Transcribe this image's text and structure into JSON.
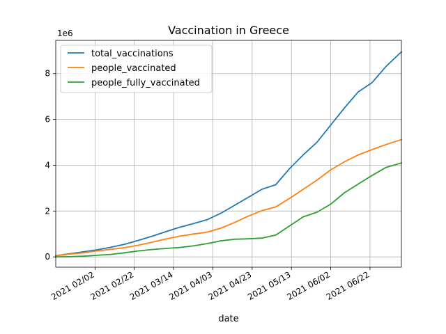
{
  "chart_data": {
    "type": "line",
    "title": "Vaccination in Greece",
    "xlabel": "date",
    "ylabel": "",
    "y_scale_label": "1e6",
    "grid": true,
    "legend_position": "top-left",
    "x_ticks": [
      "2021 02/02",
      "2021 02/22",
      "2021 03/14",
      "2021 04/03",
      "2021 04/23",
      "2021 05/13",
      "2021 06/02",
      "2021 06/22"
    ],
    "y_ticks": [
      "0",
      "2",
      "4",
      "6",
      "8"
    ],
    "xlim": [
      "2021-01-13",
      "2021-07-08"
    ],
    "ylim": [
      -0.45,
      9.45
    ],
    "series": [
      {
        "name": "total_vaccinations",
        "color": "#1f77b4",
        "x": [
          "2021-01-13",
          "2021-01-20",
          "2021-01-27",
          "2021-02-03",
          "2021-02-10",
          "2021-02-17",
          "2021-02-24",
          "2021-03-03",
          "2021-03-10",
          "2021-03-17",
          "2021-03-24",
          "2021-03-31",
          "2021-04-07",
          "2021-04-14",
          "2021-04-21",
          "2021-04-28",
          "2021-05-05",
          "2021-05-12",
          "2021-05-19",
          "2021-05-26",
          "2021-06-02",
          "2021-06-09",
          "2021-06-16",
          "2021-06-23",
          "2021-06-30",
          "2021-07-08"
        ],
        "values": [
          0.05,
          0.14,
          0.22,
          0.31,
          0.42,
          0.55,
          0.72,
          0.9,
          1.1,
          1.29,
          1.45,
          1.62,
          1.9,
          2.25,
          2.6,
          2.95,
          3.15,
          3.85,
          4.45,
          5.0,
          5.75,
          6.5,
          7.2,
          7.6,
          8.3,
          8.95
        ]
      },
      {
        "name": "people_vaccinated",
        "color": "#ff7f0e",
        "x": [
          "2021-01-13",
          "2021-01-20",
          "2021-01-27",
          "2021-02-03",
          "2021-02-10",
          "2021-02-17",
          "2021-02-24",
          "2021-03-03",
          "2021-03-10",
          "2021-03-17",
          "2021-03-24",
          "2021-03-31",
          "2021-04-07",
          "2021-04-14",
          "2021-04-21",
          "2021-04-28",
          "2021-05-05",
          "2021-05-12",
          "2021-05-19",
          "2021-05-26",
          "2021-06-02",
          "2021-06-09",
          "2021-06-16",
          "2021-06-23",
          "2021-06-30",
          "2021-07-08"
        ],
        "values": [
          0.05,
          0.12,
          0.18,
          0.26,
          0.33,
          0.4,
          0.51,
          0.64,
          0.78,
          0.9,
          1.0,
          1.08,
          1.25,
          1.5,
          1.78,
          2.02,
          2.18,
          2.55,
          2.95,
          3.35,
          3.8,
          4.15,
          4.45,
          4.68,
          4.9,
          5.12
        ]
      },
      {
        "name": "people_fully_vaccinated",
        "color": "#2ca02c",
        "x": [
          "2021-01-13",
          "2021-01-20",
          "2021-01-27",
          "2021-02-03",
          "2021-02-10",
          "2021-02-17",
          "2021-02-24",
          "2021-03-03",
          "2021-03-10",
          "2021-03-17",
          "2021-03-24",
          "2021-03-31",
          "2021-04-07",
          "2021-04-14",
          "2021-04-21",
          "2021-04-28",
          "2021-05-05",
          "2021-05-12",
          "2021-05-19",
          "2021-05-26",
          "2021-06-02",
          "2021-06-09",
          "2021-06-16",
          "2021-06-23",
          "2021-06-30",
          "2021-07-08"
        ],
        "values": [
          0.0,
          0.01,
          0.03,
          0.07,
          0.11,
          0.18,
          0.26,
          0.32,
          0.37,
          0.41,
          0.48,
          0.58,
          0.7,
          0.77,
          0.79,
          0.82,
          0.95,
          1.35,
          1.75,
          1.95,
          2.3,
          2.8,
          3.18,
          3.55,
          3.9,
          4.1
        ]
      }
    ]
  }
}
